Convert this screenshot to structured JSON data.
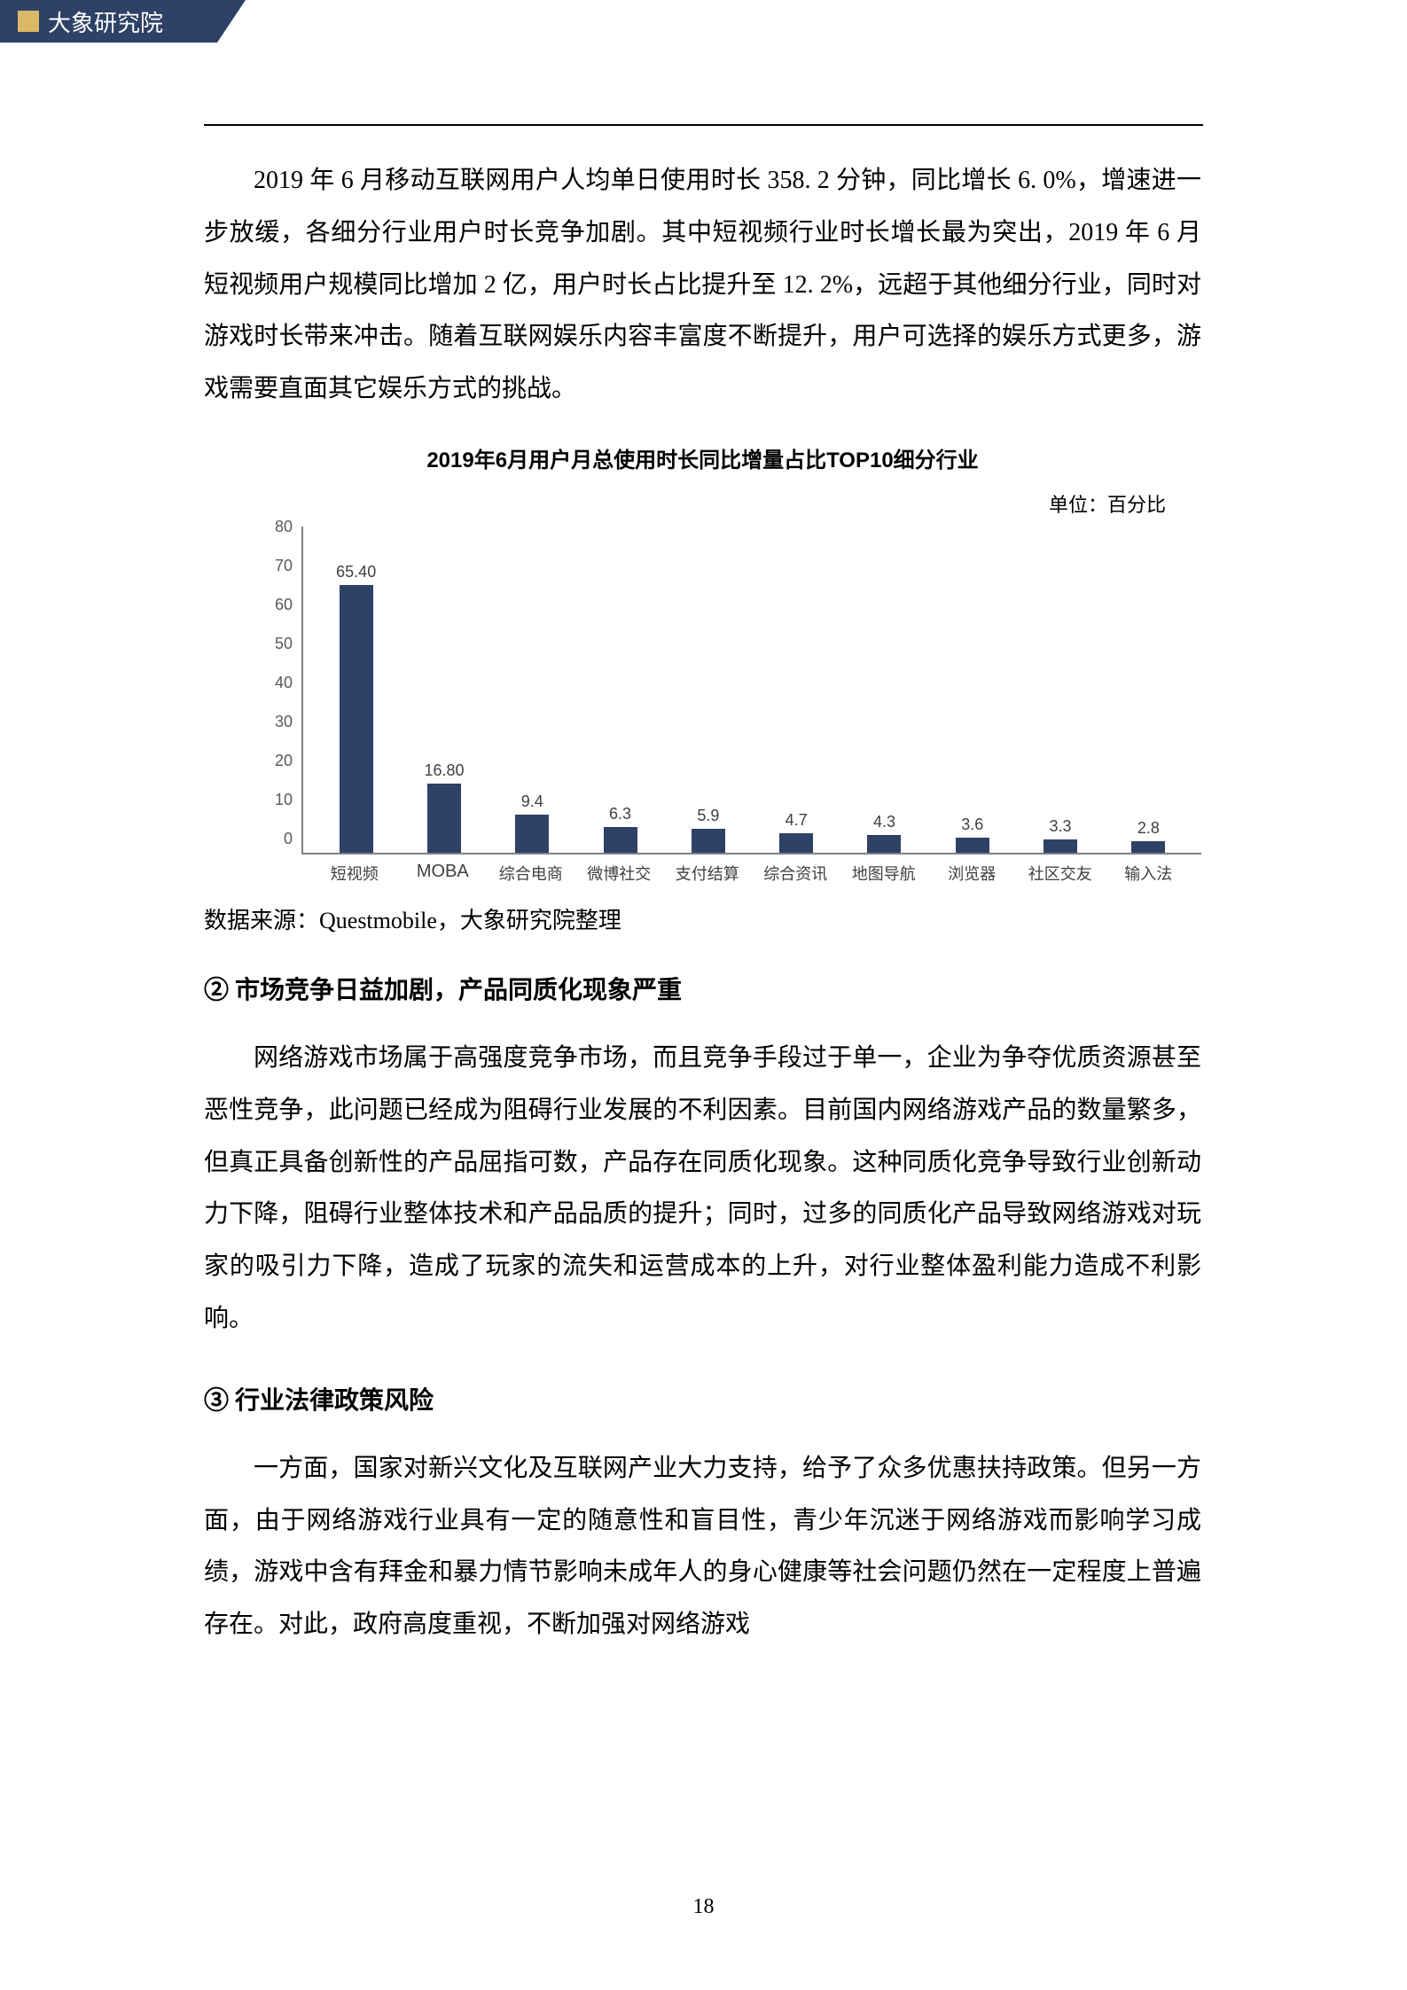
{
  "header": {
    "logo_text": "大象研究院"
  },
  "para1": "2019 年 6 月移动互联网用户人均单日使用时长 358. 2 分钟，同比增长 6. 0%，增速进一步放缓，各细分行业用户时长竞争加剧。其中短视频行业时长增长最为突出，2019 年 6 月短视频用户规模同比增加 2 亿，用户时长占比提升至 12. 2%，远超于其他细分行业，同时对游戏时长带来冲击。随着互联网娱乐内容丰富度不断提升，用户可选择的娱乐方式更多，游戏需要直面其它娱乐方式的挑战。",
  "chart": {
    "title": "2019年6月用户月总使用时长同比增量占比TOP10细分行业",
    "unit_label": "单位：百分比",
    "type": "bar",
    "bar_color": "#2e4166",
    "axis_color": "#808080",
    "text_color": "#404040",
    "title_fontsize": 24,
    "label_fontsize": 18,
    "ylim_max": 80,
    "ytick_step": 10,
    "y_ticks": [
      "80",
      "70",
      "60",
      "50",
      "40",
      "30",
      "20",
      "10",
      "0"
    ],
    "categories": [
      "短视频",
      "MOBA",
      "综合电商",
      "微博社交",
      "支付结算",
      "综合资讯",
      "地图导航",
      "浏览器",
      "社区交友",
      "输入法"
    ],
    "values": [
      65.4,
      16.8,
      9.4,
      6.3,
      5.9,
      4.7,
      4.3,
      3.6,
      3.3,
      2.8
    ],
    "value_labels": [
      "65.40",
      "16.80",
      "9.4",
      "6.3",
      "5.9",
      "4.7",
      "4.3",
      "3.6",
      "3.3",
      "2.8"
    ],
    "source": "数据来源：Questmobile，大象研究院整理"
  },
  "heading2": "② 市场竞争日益加剧，产品同质化现象严重",
  "para2": "网络游戏市场属于高强度竞争市场，而且竞争手段过于单一，企业为争夺优质资源甚至恶性竞争，此问题已经成为阻碍行业发展的不利因素。目前国内网络游戏产品的数量繁多，但真正具备创新性的产品屈指可数，产品存在同质化现象。这种同质化竞争导致行业创新动力下降，阻碍行业整体技术和产品品质的提升；同时，过多的同质化产品导致网络游戏对玩家的吸引力下降，造成了玩家的流失和运营成本的上升，对行业整体盈利能力造成不利影响。",
  "heading3": "③ 行业法律政策风险",
  "para3": "一方面，国家对新兴文化及互联网产业大力支持，给予了众多优惠扶持政策。但另一方面，由于网络游戏行业具有一定的随意性和盲目性，青少年沉迷于网络游戏而影响学习成绩，游戏中含有拜金和暴力情节影响未成年人的身心健康等社会问题仍然在一定程度上普遍存在。对此，政府高度重视，不断加强对网络游戏",
  "page_number": "18"
}
